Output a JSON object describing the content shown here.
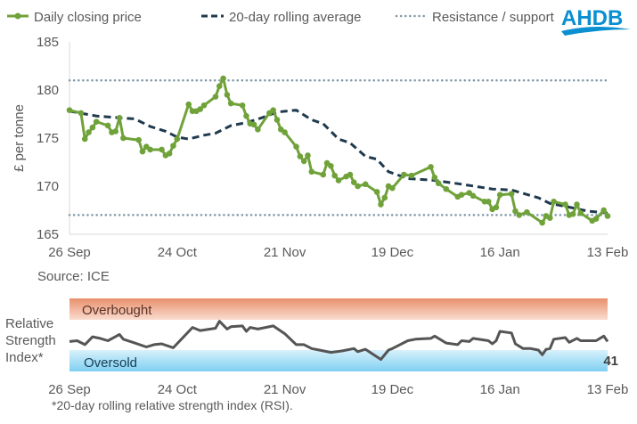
{
  "logo": {
    "text": "AHDB",
    "color": "#0a8fd0"
  },
  "colors": {
    "price": "#70a23a",
    "average": "#1f3a4d",
    "levels": "#7f98a8",
    "rsi": "#555555",
    "overbought": "#ee9a78",
    "oversold": "#7fd0f2"
  },
  "chart_data": [
    {
      "type": "line",
      "ylabel": "£ per tonne",
      "ylim": [
        165,
        185
      ],
      "yticks": [
        "165",
        "170",
        "175",
        "180",
        "185"
      ],
      "xticks": [
        "26 Sep",
        "24 Oct",
        "21 Nov",
        "19 Dec",
        "16 Jan",
        "13 Feb"
      ],
      "source": "Source: ICE",
      "legend_position": "top",
      "grid": false,
      "series": [
        {
          "name": "Daily closing price",
          "style": "solid-markers",
          "points": [
            [
              "26 Sep",
              177.9
            ],
            [
              "29 Sep",
              177.6
            ],
            [
              "30 Sep",
              174.9
            ],
            [
              "1 Oct",
              175.6
            ],
            [
              "2 Oct",
              176.1
            ],
            [
              "3 Oct",
              176.7
            ],
            [
              "6 Oct",
              176.3
            ],
            [
              "7 Oct",
              175.6
            ],
            [
              "8 Oct",
              175.7
            ],
            [
              "9 Oct",
              177.1
            ],
            [
              "10 Oct",
              175.0
            ],
            [
              "14 Oct",
              174.8
            ],
            [
              "15 Oct",
              173.6
            ],
            [
              "16 Oct",
              174.1
            ],
            [
              "17 Oct",
              173.8
            ],
            [
              "20 Oct",
              173.8
            ],
            [
              "21 Oct",
              173.2
            ],
            [
              "22 Oct",
              173.4
            ],
            [
              "23 Oct",
              174.2
            ],
            [
              "24 Oct",
              174.9
            ],
            [
              "27 Oct",
              178.5
            ],
            [
              "28 Oct",
              177.8
            ],
            [
              "29 Oct",
              177.8
            ],
            [
              "30 Oct",
              178.0
            ],
            [
              "31 Oct",
              178.4
            ],
            [
              "3 Nov",
              179.3
            ],
            [
              "4 Nov",
              180.4
            ],
            [
              "5 Nov",
              181.2
            ],
            [
              "6 Nov",
              179.5
            ],
            [
              "7 Nov",
              178.6
            ],
            [
              "10 Nov",
              178.4
            ],
            [
              "11 Nov",
              177.3
            ],
            [
              "12 Nov",
              176.5
            ],
            [
              "13 Nov",
              176.4
            ],
            [
              "14 Nov",
              175.9
            ],
            [
              "17 Nov",
              177.6
            ],
            [
              "18 Nov",
              177.9
            ],
            [
              "19 Nov",
              176.9
            ],
            [
              "20 Nov",
              175.9
            ],
            [
              "21 Nov",
              175.6
            ],
            [
              "24 Nov",
              174.1
            ],
            [
              "25 Nov",
              173.1
            ],
            [
              "26 Nov",
              172.6
            ],
            [
              "27 Nov",
              173.2
            ],
            [
              "28 Nov",
              171.5
            ],
            [
              "1 Dec",
              171.2
            ],
            [
              "2 Dec",
              172.4
            ],
            [
              "3 Dec",
              172.1
            ],
            [
              "4 Dec",
              171.1
            ],
            [
              "5 Dec",
              170.6
            ],
            [
              "7 Dec",
              171.0
            ],
            [
              "8 Dec",
              171.2
            ],
            [
              "9 Dec",
              170.4
            ],
            [
              "10 Dec",
              170.0
            ],
            [
              "12 Dec",
              170.2
            ],
            [
              "15 Dec",
              169.4
            ],
            [
              "16 Dec",
              168.1
            ],
            [
              "17 Dec",
              168.8
            ],
            [
              "18 Dec",
              170.0
            ],
            [
              "19 Dec",
              169.8
            ],
            [
              "22 Dec",
              171.2
            ],
            [
              "24 Dec",
              171.1
            ],
            [
              "29 Dec",
              172.0
            ],
            [
              "30 Dec",
              170.9
            ],
            [
              "31 Dec",
              170.3
            ],
            [
              "2 Jan",
              169.7
            ],
            [
              "5 Jan",
              168.9
            ],
            [
              "6 Jan",
              169.1
            ],
            [
              "8 Jan",
              169.3
            ],
            [
              "9 Jan",
              169.0
            ],
            [
              "12 Jan",
              168.4
            ],
            [
              "13 Jan",
              168.4
            ],
            [
              "14 Jan",
              167.6
            ],
            [
              "15 Jan",
              167.8
            ],
            [
              "16 Jan",
              169.1
            ],
            [
              "19 Jan",
              169.2
            ],
            [
              "20 Jan",
              167.4
            ],
            [
              "21 Jan",
              167.0
            ],
            [
              "23 Jan",
              167.3
            ],
            [
              "27 Jan",
              166.2
            ],
            [
              "28 Jan",
              166.9
            ],
            [
              "29 Jan",
              166.7
            ],
            [
              "30 Jan",
              168.4
            ],
            [
              "2 Feb",
              168.1
            ],
            [
              "3 Feb",
              167.0
            ],
            [
              "4 Feb",
              167.1
            ],
            [
              "5 Feb",
              168.1
            ],
            [
              "6 Feb",
              167.2
            ],
            [
              "9 Feb",
              166.4
            ],
            [
              "10 Feb",
              166.6
            ],
            [
              "12 Feb",
              167.5
            ],
            [
              "13 Feb",
              166.9
            ]
          ]
        },
        {
          "name": "20-day rolling average",
          "style": "dashed",
          "points": [
            [
              "26 Sep",
              177.8
            ],
            [
              "3 Oct",
              177.3
            ],
            [
              "9 Oct",
              177.1
            ],
            [
              "13 Oct",
              177.0
            ],
            [
              "17 Oct",
              176.2
            ],
            [
              "21 Oct",
              175.7
            ],
            [
              "24 Oct",
              175.1
            ],
            [
              "27 Oct",
              174.9
            ],
            [
              "31 Oct",
              175.3
            ],
            [
              "3 Nov",
              175.5
            ],
            [
              "7 Nov",
              176.3
            ],
            [
              "11 Nov",
              176.6
            ],
            [
              "15 Nov",
              177.1
            ],
            [
              "19 Nov",
              177.7
            ],
            [
              "24 Nov",
              177.9
            ],
            [
              "28 Nov",
              176.9
            ],
            [
              "1 Dec",
              176.5
            ],
            [
              "5 Dec",
              174.9
            ],
            [
              "8 Dec",
              174.5
            ],
            [
              "12 Dec",
              173.1
            ],
            [
              "15 Dec",
              172.8
            ],
            [
              "18 Dec",
              171.5
            ],
            [
              "23 Dec",
              170.8
            ],
            [
              "30 Dec",
              170.6
            ],
            [
              "6 Jan",
              170.2
            ],
            [
              "14 Jan",
              169.7
            ],
            [
              "19 Jan",
              169.6
            ],
            [
              "26 Jan",
              168.8
            ],
            [
              "29 Jan",
              168.2
            ],
            [
              "2 Feb",
              167.9
            ],
            [
              "8 Feb",
              167.4
            ],
            [
              "13 Feb",
              167.2
            ]
          ]
        },
        {
          "name": "Resistance / support",
          "style": "dotted",
          "levels": [
            181,
            167
          ]
        }
      ]
    },
    {
      "type": "line",
      "ylabel": "Relative Strength Index*",
      "ylim": [
        0,
        100
      ],
      "xticks": [
        "26 Sep",
        "24 Oct",
        "21 Nov",
        "19 Dec",
        "16 Jan",
        "13 Feb"
      ],
      "bands": [
        {
          "label": "Overbought",
          "range": [
            70,
            100
          ]
        },
        {
          "label": "Oversold",
          "range": [
            0,
            30
          ]
        }
      ],
      "last_value_label": "41",
      "footnote": "*20-day rolling relative strength index (RSI).",
      "series": [
        {
          "points": [
            [
              "26 Sep",
              41
            ],
            [
              "28 Sep",
              42
            ],
            [
              "30 Sep",
              37
            ],
            [
              "2 Oct",
              47
            ],
            [
              "4 Oct",
              45
            ],
            [
              "6 Oct",
              42
            ],
            [
              "9 Oct",
              50
            ],
            [
              "10 Oct",
              44
            ],
            [
              "13 Oct",
              39
            ],
            [
              "16 Oct",
              34
            ],
            [
              "18 Oct",
              37
            ],
            [
              "20 Oct",
              38
            ],
            [
              "23 Oct",
              33
            ],
            [
              "28 Oct",
              59
            ],
            [
              "30 Oct",
              55
            ],
            [
              "3 Nov",
              58
            ],
            [
              "4 Nov",
              67
            ],
            [
              "6 Nov",
              57
            ],
            [
              "7 Nov",
              60
            ],
            [
              "10 Nov",
              61
            ],
            [
              "11 Nov",
              54
            ],
            [
              "12 Nov",
              59
            ],
            [
              "14 Nov",
              57
            ],
            [
              "18 Nov",
              61
            ],
            [
              "21 Nov",
              51
            ],
            [
              "24 Nov",
              37
            ],
            [
              "26 Nov",
              37
            ],
            [
              "28 Nov",
              32
            ],
            [
              "30 Nov",
              30
            ],
            [
              "1 Dec",
              29
            ],
            [
              "3 Dec",
              27
            ],
            [
              "6 Dec",
              29
            ],
            [
              "9 Dec",
              32
            ],
            [
              "10 Dec",
              28
            ],
            [
              "12 Dec",
              31
            ],
            [
              "16 Dec",
              18
            ],
            [
              "18 Dec",
              30
            ],
            [
              "19 Dec",
              32
            ],
            [
              "23 Dec",
              42
            ],
            [
              "25 Dec",
              44
            ],
            [
              "29 Dec",
              45
            ],
            [
              "30 Dec",
              48
            ],
            [
              "2 Jan",
              39
            ],
            [
              "5 Jan",
              37
            ],
            [
              "6 Jan",
              42
            ],
            [
              "8 Jan",
              41
            ],
            [
              "9 Jan",
              45
            ],
            [
              "13 Jan",
              42
            ],
            [
              "14 Jan",
              38
            ],
            [
              "15 Jan",
              42
            ],
            [
              "16 Jan",
              54
            ],
            [
              "19 Jan",
              52
            ],
            [
              "20 Jan",
              38
            ],
            [
              "22 Jan",
              32
            ],
            [
              "24 Jan",
              32
            ],
            [
              "26 Jan",
              30
            ],
            [
              "27 Jan",
              24
            ],
            [
              "28 Jan",
              31
            ],
            [
              "29 Jan",
              32
            ],
            [
              "30 Jan",
              44
            ],
            [
              "2 Feb",
              46
            ],
            [
              "3 Feb",
              40
            ],
            [
              "5 Feb",
              45
            ],
            [
              "6 Feb",
              42
            ],
            [
              "10 Feb",
              42
            ],
            [
              "12 Feb",
              48
            ],
            [
              "13 Feb",
              41
            ]
          ]
        }
      ]
    }
  ]
}
